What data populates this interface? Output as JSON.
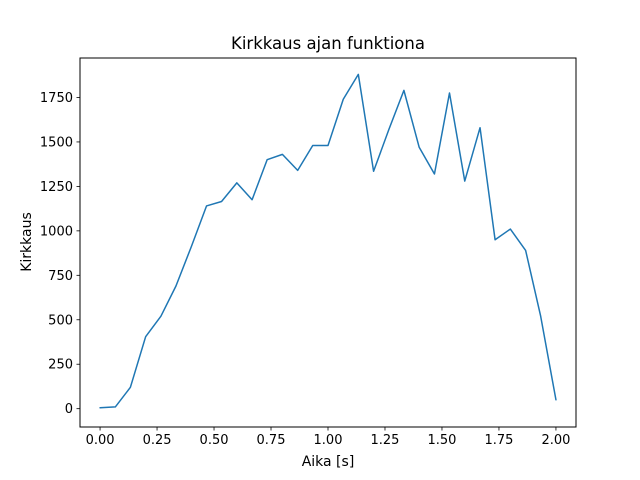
{
  "figure": {
    "background": "#ffffff",
    "frame_color": "#000000",
    "text_color": "#000000"
  },
  "chart_data": {
    "type": "line",
    "title": "Kirkkaus ajan funktiona",
    "xlabel": "Aika [s]",
    "ylabel": "Kirkkaus",
    "line_color": "#1f77b4",
    "grid": false,
    "legend": null,
    "xlim": [
      -0.088,
      2.088
    ],
    "ylim": [
      -103,
      1972
    ],
    "xticks": [
      0.0,
      0.25,
      0.5,
      0.75,
      1.0,
      1.25,
      1.5,
      1.75,
      2.0
    ],
    "xtick_labels": [
      "0.00",
      "0.25",
      "0.50",
      "0.75",
      "1.00",
      "1.25",
      "1.50",
      "1.75",
      "2.00"
    ],
    "yticks": [
      0,
      250,
      500,
      750,
      1000,
      1250,
      1500,
      1750
    ],
    "ytick_labels": [
      "0",
      "250",
      "500",
      "750",
      "1000",
      "1250",
      "1500",
      "1750"
    ],
    "x": [
      0.0,
      0.067,
      0.133,
      0.2,
      0.267,
      0.333,
      0.4,
      0.467,
      0.533,
      0.6,
      0.667,
      0.733,
      0.8,
      0.867,
      0.933,
      1.0,
      1.067,
      1.133,
      1.2,
      1.267,
      1.333,
      1.4,
      1.467,
      1.533,
      1.6,
      1.667,
      1.733,
      1.8,
      1.867,
      1.933,
      2.0
    ],
    "values": [
      5,
      10,
      120,
      405,
      520,
      690,
      910,
      1140,
      1165,
      1270,
      1175,
      1400,
      1430,
      1340,
      1480,
      1480,
      1740,
      1880,
      1335,
      1570,
      1790,
      1470,
      1320,
      1775,
      1280,
      1580,
      950,
      1010,
      890,
      520,
      50
    ]
  }
}
